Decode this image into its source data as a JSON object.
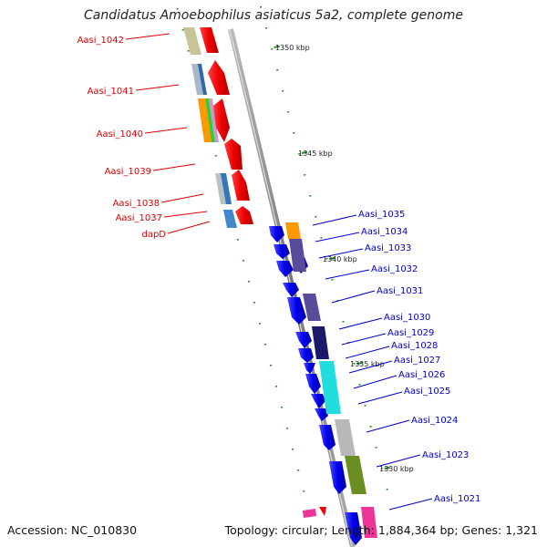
{
  "title": "Candidatus Amoebophilus asiaticus 5a2, complete genome",
  "footer": {
    "accession": "Accession: NC_010830",
    "summary": "Topology: circular; Length: 1,884,364 bp; Genes: 1,321"
  },
  "colors": {
    "left_label": "#dd0000",
    "right_label": "#0000cc",
    "forward_gene": "#ee0000",
    "reverse_gene": "#0000ee",
    "tick": "#228822",
    "backbone": "#888888"
  },
  "ticks": [
    {
      "label": "1350 kbp"
    },
    {
      "label": "1345 kbp"
    },
    {
      "label": "1340 kbp"
    },
    {
      "label": "1335 kbp"
    },
    {
      "label": "1330 kbp"
    }
  ],
  "left_labels": [
    "Aasi_1042",
    "Aasi_1041",
    "Aasi_1040",
    "Aasi_1039",
    "Aasi_1038",
    "Aasi_1037",
    "dapD"
  ],
  "right_labels": [
    "Aasi_1035",
    "Aasi_1034",
    "Aasi_1033",
    "Aasi_1032",
    "Aasi_1031",
    "Aasi_1030",
    "Aasi_1029",
    "Aasi_1028",
    "Aasi_1027",
    "Aasi_1026",
    "Aasi_1025",
    "Aasi_1024",
    "Aasi_1023",
    "Aasi_1021"
  ]
}
